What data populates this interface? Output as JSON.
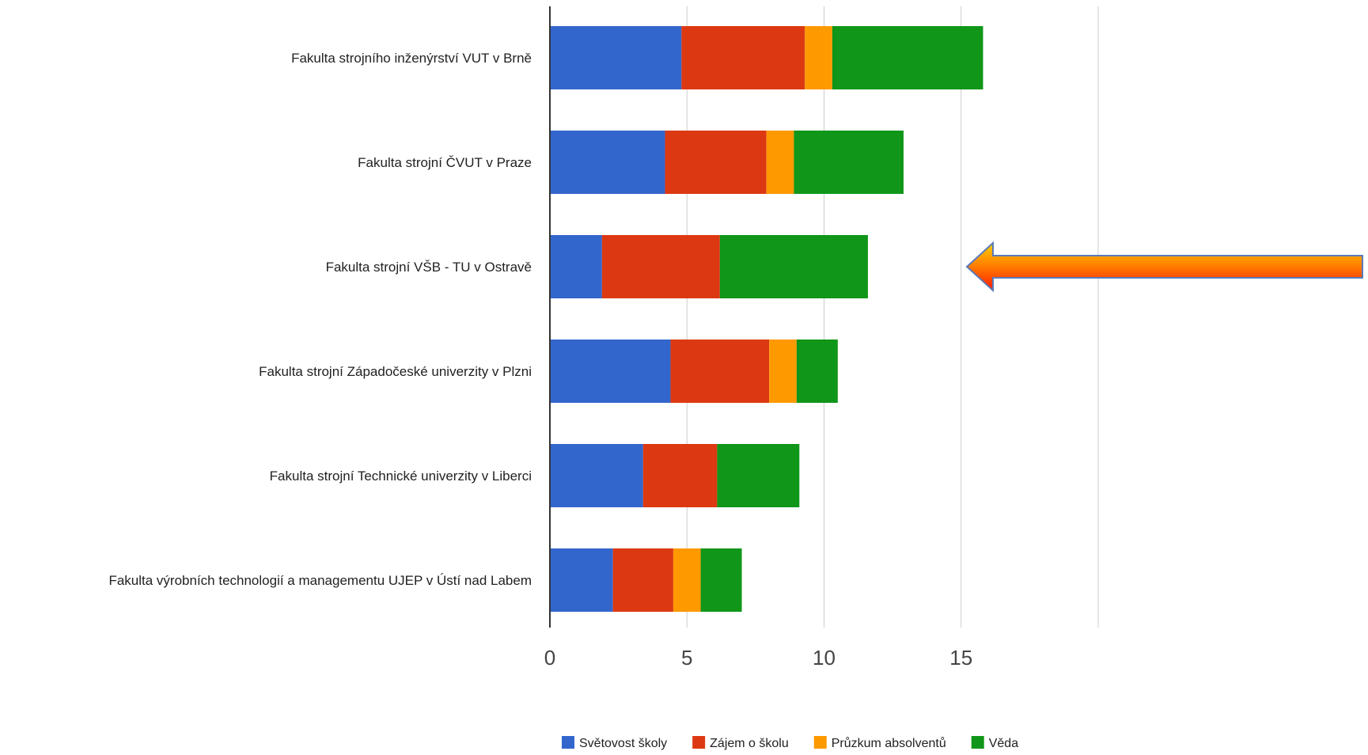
{
  "chart_data": {
    "type": "bar",
    "orientation": "horizontal",
    "stacked": true,
    "categories": [
      "Fakulta strojního inženýrství VUT v Brně",
      "Fakulta strojní ČVUT v Praze",
      "Fakulta strojní VŠB - TU v Ostravě",
      "Fakulta strojní Západočeské univerzity v Plzni",
      "Fakulta strojní Technické univerzity v Liberci",
      "Fakulta výrobních technologií a managementu UJEP v Ústí nad Labem"
    ],
    "series": [
      {
        "name": "Světovost školy",
        "color": "#3366cc",
        "values": [
          4.8,
          4.2,
          1.9,
          4.4,
          3.4,
          2.3
        ]
      },
      {
        "name": "Zájem o školu",
        "color": "#dc3912",
        "values": [
          4.5,
          3.7,
          4.3,
          3.6,
          2.7,
          2.2
        ]
      },
      {
        "name": "Průzkum absolventů",
        "color": "#ff9900",
        "values": [
          1.0,
          1.0,
          0,
          1.0,
          0,
          1.0
        ]
      },
      {
        "name": "Věda",
        "color": "#109618",
        "values": [
          5.5,
          4.0,
          5.4,
          1.5,
          3.0,
          1.5
        ]
      }
    ],
    "x_ticks": [
      "0",
      "5",
      "10",
      "15"
    ],
    "xlim": [
      0,
      20
    ],
    "grid": true,
    "legend": "bottom",
    "title": "",
    "xlabel": "",
    "ylabel": ""
  },
  "annotation": {
    "type": "arrow",
    "points_to": "Fakulta strojní VŠB - TU v Ostravě",
    "colors": [
      "#ffd000",
      "#ff7a00",
      "#ff1a00"
    ],
    "outline": "#5a7ab8"
  }
}
